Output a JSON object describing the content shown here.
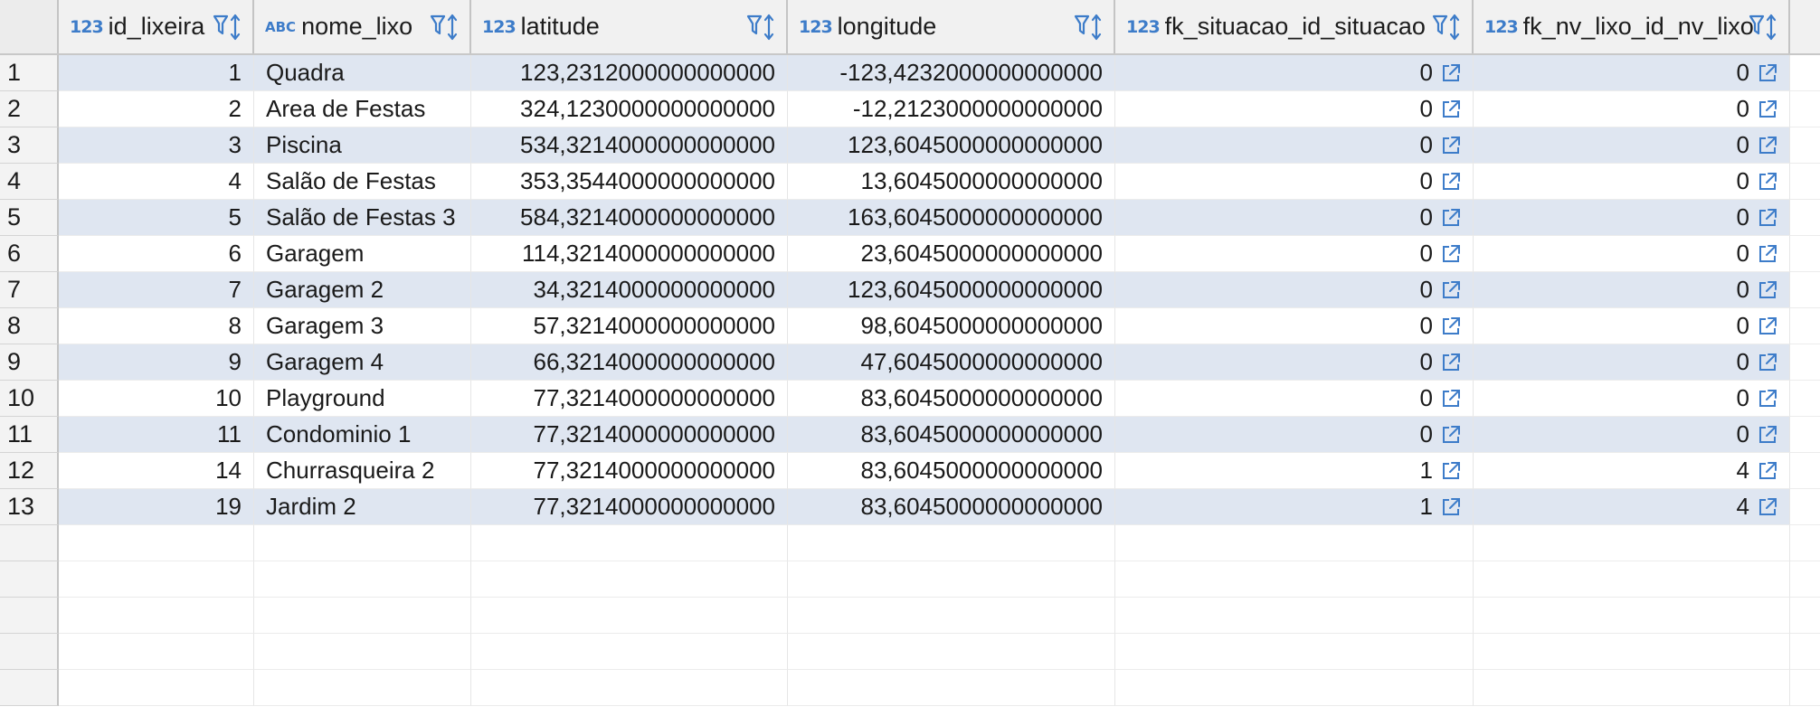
{
  "columns": [
    {
      "type_icon": "123",
      "name": "id_lixeira"
    },
    {
      "type_icon": "ABC",
      "name": "nome_lixo"
    },
    {
      "type_icon": "123",
      "name": "latitude"
    },
    {
      "type_icon": "123",
      "name": "longitude"
    },
    {
      "type_icon": "123",
      "name": "fk_situacao_id_situacao"
    },
    {
      "type_icon": "123",
      "name": "fk_nv_lixo_id_nv_lixo"
    }
  ],
  "rows": [
    {
      "n": "1",
      "id": "1",
      "nome": "Quadra",
      "lat": "123,2312000000000000",
      "lon": "-123,4232000000000000",
      "sit": "0",
      "nv": "0"
    },
    {
      "n": "2",
      "id": "2",
      "nome": "Area de Festas",
      "lat": "324,1230000000000000",
      "lon": "-12,2123000000000000",
      "sit": "0",
      "nv": "0"
    },
    {
      "n": "3",
      "id": "3",
      "nome": "Piscina",
      "lat": "534,3214000000000000",
      "lon": "123,6045000000000000",
      "sit": "0",
      "nv": "0"
    },
    {
      "n": "4",
      "id": "4",
      "nome": "Salão de Festas",
      "lat": "353,3544000000000000",
      "lon": "13,6045000000000000",
      "sit": "0",
      "nv": "0"
    },
    {
      "n": "5",
      "id": "5",
      "nome": "Salão de Festas 3",
      "lat": "584,3214000000000000",
      "lon": "163,6045000000000000",
      "sit": "0",
      "nv": "0"
    },
    {
      "n": "6",
      "id": "6",
      "nome": "Garagem",
      "lat": "114,3214000000000000",
      "lon": "23,6045000000000000",
      "sit": "0",
      "nv": "0"
    },
    {
      "n": "7",
      "id": "7",
      "nome": "Garagem 2",
      "lat": "34,3214000000000000",
      "lon": "123,6045000000000000",
      "sit": "0",
      "nv": "0"
    },
    {
      "n": "8",
      "id": "8",
      "nome": "Garagem 3",
      "lat": "57,3214000000000000",
      "lon": "98,6045000000000000",
      "sit": "0",
      "nv": "0"
    },
    {
      "n": "9",
      "id": "9",
      "nome": "Garagem 4",
      "lat": "66,3214000000000000",
      "lon": "47,6045000000000000",
      "sit": "0",
      "nv": "0"
    },
    {
      "n": "10",
      "id": "10",
      "nome": "Playground",
      "lat": "77,3214000000000000",
      "lon": "83,6045000000000000",
      "sit": "0",
      "nv": "0"
    },
    {
      "n": "11",
      "id": "11",
      "nome": "Condominio 1",
      "lat": "77,3214000000000000",
      "lon": "83,6045000000000000",
      "sit": "0",
      "nv": "0"
    },
    {
      "n": "12",
      "id": "14",
      "nome": "Churrasqueira 2",
      "lat": "77,3214000000000000",
      "lon": "83,6045000000000000",
      "sit": "1",
      "nv": "4"
    },
    {
      "n": "13",
      "id": "19",
      "nome": "Jardim 2",
      "lat": "77,3214000000000000",
      "lon": "83,6045000000000000",
      "sit": "1",
      "nv": "4"
    }
  ],
  "icons": {
    "filter_sort": "filter-sort-icon",
    "foreign_key_link": "open-link-icon"
  },
  "colors": {
    "accent": "#3d7cc9",
    "stripe": "#dfe6f1",
    "header_bg": "#f1f1f1"
  }
}
